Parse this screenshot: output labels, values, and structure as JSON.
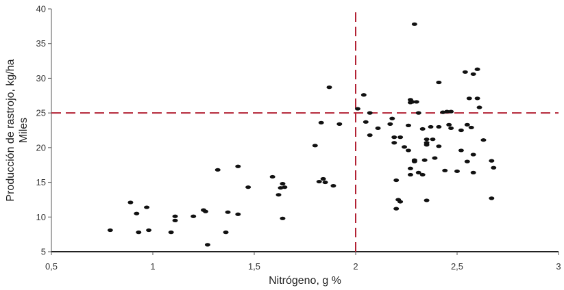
{
  "chart_data": {
    "type": "scatter",
    "xlabel": "Nitrógeno, g %",
    "ylabel": "Producción de rastrojo, kg/ha",
    "ylabel_sub": "Miles",
    "xlim": [
      0.5,
      3
    ],
    "ylim": [
      5,
      40
    ],
    "x_ticks": [
      "0,5",
      "1",
      "1,5",
      "2",
      "2,5",
      "3"
    ],
    "y_ticks": [
      "5",
      "10",
      "15",
      "20",
      "25",
      "30",
      "35",
      "40"
    ],
    "grid": false,
    "reference_lines": {
      "x": 2,
      "y": 25,
      "style": "dashed",
      "color": "#b22234"
    },
    "marker_color": "#111111",
    "points": [
      [
        0.79,
        8.1
      ],
      [
        0.89,
        12.1
      ],
      [
        0.92,
        10.5
      ],
      [
        0.93,
        7.8
      ],
      [
        0.97,
        11.4
      ],
      [
        0.98,
        8.1
      ],
      [
        1.09,
        7.8
      ],
      [
        1.11,
        10.1
      ],
      [
        1.11,
        9.5
      ],
      [
        1.2,
        10.1
      ],
      [
        1.25,
        11.0
      ],
      [
        1.26,
        10.8
      ],
      [
        1.27,
        6.0
      ],
      [
        1.32,
        16.8
      ],
      [
        1.36,
        7.8
      ],
      [
        1.37,
        10.7
      ],
      [
        1.42,
        17.3
      ],
      [
        1.42,
        10.4
      ],
      [
        1.47,
        14.3
      ],
      [
        1.59,
        15.8
      ],
      [
        1.62,
        13.2
      ],
      [
        1.63,
        14.2
      ],
      [
        1.64,
        14.8
      ],
      [
        1.64,
        9.8
      ],
      [
        1.65,
        14.3
      ],
      [
        1.8,
        20.3
      ],
      [
        1.82,
        15.1
      ],
      [
        1.83,
        23.6
      ],
      [
        1.84,
        15.5
      ],
      [
        1.85,
        15.0
      ],
      [
        1.87,
        28.7
      ],
      [
        1.89,
        14.5
      ],
      [
        1.92,
        23.4
      ],
      [
        2.01,
        25.6
      ],
      [
        2.04,
        27.6
      ],
      [
        2.05,
        23.7
      ],
      [
        2.07,
        25.0
      ],
      [
        2.07,
        21.8
      ],
      [
        2.11,
        22.8
      ],
      [
        2.17,
        23.4
      ],
      [
        2.18,
        24.2
      ],
      [
        2.19,
        21.5
      ],
      [
        2.19,
        20.7
      ],
      [
        2.2,
        15.3
      ],
      [
        2.2,
        11.2
      ],
      [
        2.21,
        12.5
      ],
      [
        2.22,
        21.5
      ],
      [
        2.22,
        12.2
      ],
      [
        2.24,
        20.1
      ],
      [
        2.26,
        23.2
      ],
      [
        2.26,
        19.6
      ],
      [
        2.27,
        26.9
      ],
      [
        2.27,
        26.5
      ],
      [
        2.27,
        17.0
      ],
      [
        2.27,
        16.1
      ],
      [
        2.28,
        26.6
      ],
      [
        2.29,
        37.8
      ],
      [
        2.29,
        18.2
      ],
      [
        2.29,
        18.0
      ],
      [
        2.3,
        26.6
      ],
      [
        2.31,
        25.0
      ],
      [
        2.31,
        16.4
      ],
      [
        2.33,
        22.7
      ],
      [
        2.33,
        16.1
      ],
      [
        2.34,
        18.2
      ],
      [
        2.35,
        21.2
      ],
      [
        2.35,
        20.7
      ],
      [
        2.35,
        20.4
      ],
      [
        2.35,
        12.4
      ],
      [
        2.37,
        23.0
      ],
      [
        2.38,
        21.2
      ],
      [
        2.39,
        18.5
      ],
      [
        2.41,
        29.4
      ],
      [
        2.41,
        23.0
      ],
      [
        2.41,
        20.2
      ],
      [
        2.43,
        25.1
      ],
      [
        2.44,
        16.7
      ],
      [
        2.45,
        25.2
      ],
      [
        2.46,
        23.3
      ],
      [
        2.47,
        25.2
      ],
      [
        2.47,
        22.8
      ],
      [
        2.5,
        16.6
      ],
      [
        2.52,
        22.5
      ],
      [
        2.52,
        19.6
      ],
      [
        2.54,
        30.9
      ],
      [
        2.55,
        23.3
      ],
      [
        2.55,
        18.0
      ],
      [
        2.56,
        27.1
      ],
      [
        2.57,
        22.9
      ],
      [
        2.58,
        30.6
      ],
      [
        2.58,
        19.0
      ],
      [
        2.58,
        16.4
      ],
      [
        2.6,
        31.3
      ],
      [
        2.6,
        27.1
      ],
      [
        2.61,
        25.8
      ],
      [
        2.63,
        21.1
      ],
      [
        2.67,
        18.1
      ],
      [
        2.67,
        12.7
      ],
      [
        2.68,
        17.1
      ]
    ]
  }
}
